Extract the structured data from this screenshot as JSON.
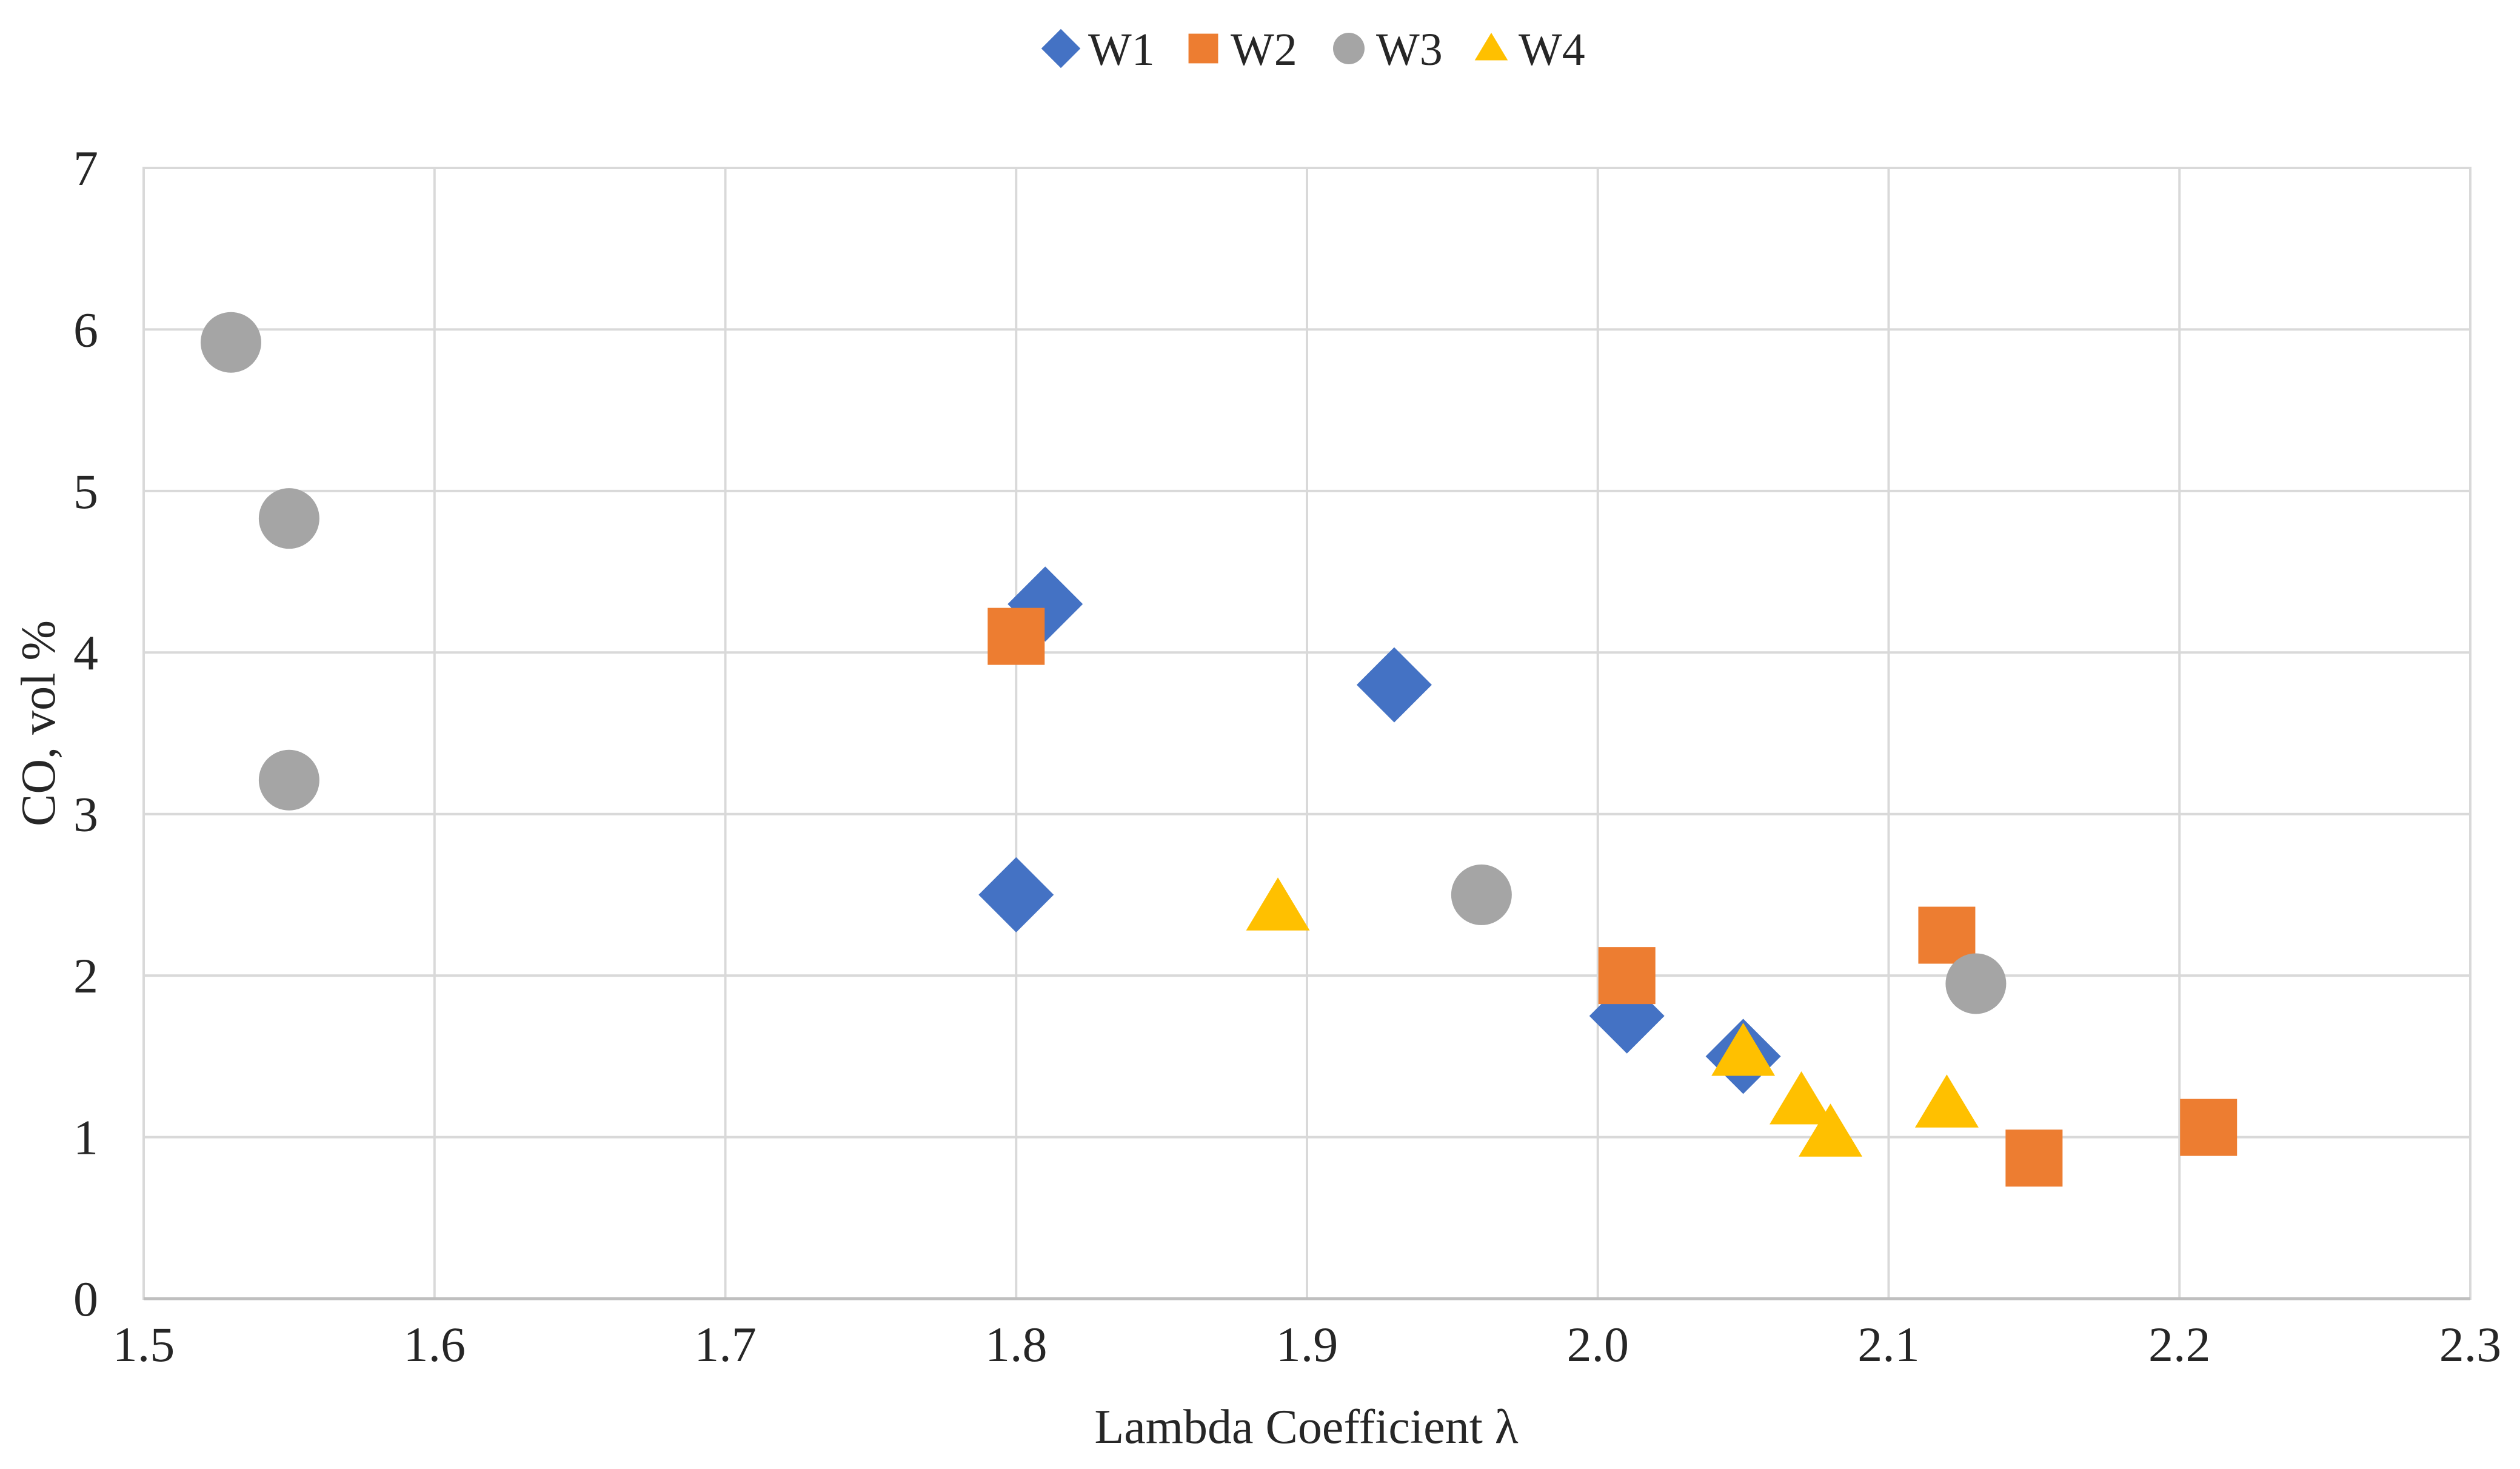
{
  "chart_data": {
    "type": "scatter",
    "title": "",
    "xlabel": "Lambda Coefficient λ",
    "ylabel": "CO, vol %",
    "xlim": [
      1.5,
      2.3
    ],
    "ylim": [
      0,
      7
    ],
    "x_ticks": [
      "1.5",
      "1.6",
      "1.7",
      "1.8",
      "1.9",
      "2.0",
      "2.1",
      "2.2",
      "2.3"
    ],
    "y_ticks": [
      "0",
      "1",
      "2",
      "3",
      "4",
      "5",
      "6",
      "7"
    ],
    "grid": true,
    "legend_position": "top-center",
    "series": [
      {
        "name": "W1",
        "marker": "diamond",
        "color": "#4472C4",
        "points": [
          [
            1.81,
            4.3
          ],
          [
            1.8,
            2.5
          ],
          [
            1.93,
            3.8
          ],
          [
            2.01,
            1.75
          ],
          [
            2.05,
            1.5
          ]
        ]
      },
      {
        "name": "W2",
        "marker": "square",
        "color": "#ED7D31",
        "points": [
          [
            1.8,
            4.1
          ],
          [
            2.01,
            2.0
          ],
          [
            2.12,
            2.25
          ],
          [
            2.15,
            0.87
          ],
          [
            2.21,
            1.06
          ]
        ]
      },
      {
        "name": "W3",
        "marker": "circle",
        "color": "#A5A5A5",
        "points": [
          [
            1.53,
            5.92
          ],
          [
            1.55,
            4.83
          ],
          [
            1.55,
            3.21
          ],
          [
            1.96,
            2.5
          ],
          [
            2.13,
            1.95
          ]
        ]
      },
      {
        "name": "W4",
        "marker": "triangle",
        "color": "#FFC000",
        "points": [
          [
            1.89,
            2.42
          ],
          [
            2.05,
            1.52
          ],
          [
            2.07,
            1.22
          ],
          [
            2.08,
            1.02
          ],
          [
            2.12,
            1.2
          ]
        ]
      }
    ]
  }
}
